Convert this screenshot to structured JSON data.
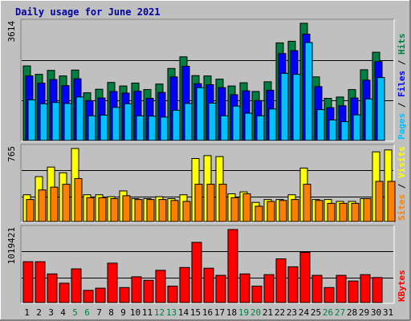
{
  "title": "Daily usage for June 2021",
  "colors": {
    "background": "#c0c0c0",
    "plot_background": "#c0c0c0",
    "title": "#0000a0",
    "hits": "#008040",
    "files": "#0000ff",
    "pages": "#00c0ff",
    "visits": "#ffff00",
    "sites": "#ff8000",
    "kbytes": "#ff0000",
    "weekend": "#008040",
    "weekday": "#000000"
  },
  "chart_data": [
    {
      "type": "bar",
      "name": "pages-files-hits",
      "right_label": [
        {
          "text": "Pages",
          "color": "#00c0ff"
        },
        {
          "text": " / ",
          "color": "#000000"
        },
        {
          "text": "Files",
          "color": "#0000ff"
        },
        {
          "text": " / ",
          "color": "#000000"
        },
        {
          "text": "Hits",
          "color": "#008040"
        }
      ],
      "ymax_label": "3614",
      "ylim": [
        0,
        3614
      ],
      "categories": [
        "1",
        "2",
        "3",
        "4",
        "5",
        "6",
        "7",
        "8",
        "9",
        "10",
        "11",
        "12",
        "13",
        "14",
        "15",
        "16",
        "17",
        "18",
        "19",
        "20",
        "21",
        "22",
        "23",
        "24",
        "25",
        "26",
        "27",
        "28",
        "29",
        "30",
        "31"
      ],
      "series": [
        {
          "name": "Hits",
          "values": [
            2300,
            2040,
            2160,
            1990,
            2170,
            1470,
            1580,
            1790,
            1680,
            1770,
            1570,
            1740,
            2220,
            2580,
            2000,
            1990,
            1890,
            1680,
            1780,
            1510,
            1810,
            3010,
            3060,
            3614,
            1960,
            1300,
            1340,
            1570,
            2180,
            2720,
            0
          ]
        },
        {
          "name": "Files",
          "values": [
            1990,
            1770,
            1880,
            1690,
            1900,
            1230,
            1310,
            1510,
            1460,
            1520,
            1300,
            1480,
            1960,
            2290,
            1750,
            1720,
            1630,
            1410,
            1530,
            1230,
            1550,
            2680,
            2770,
            3280,
            1660,
            1010,
            1070,
            1310,
            1860,
            2430,
            0
          ]
        },
        {
          "name": "Pages",
          "values": [
            1250,
            1130,
            1170,
            1140,
            1340,
            760,
            780,
            1020,
            1130,
            760,
            750,
            720,
            930,
            1140,
            1630,
            1150,
            760,
            1060,
            840,
            760,
            970,
            2070,
            2040,
            3020,
            950,
            630,
            580,
            790,
            1280,
            1940,
            0
          ]
        }
      ]
    },
    {
      "type": "bar",
      "name": "sites-visits",
      "right_label": [
        {
          "text": "Sites",
          "color": "#ff8000"
        },
        {
          "text": " / ",
          "color": "#000000"
        },
        {
          "text": "Visits",
          "color": "#ffff00"
        }
      ],
      "ymax_label": "765",
      "ylim": [
        0,
        765
      ],
      "categories": [
        "1",
        "2",
        "3",
        "4",
        "5",
        "6",
        "7",
        "8",
        "9",
        "10",
        "11",
        "12",
        "13",
        "14",
        "15",
        "16",
        "17",
        "18",
        "19",
        "20",
        "21",
        "22",
        "23",
        "24",
        "25",
        "26",
        "27",
        "28",
        "29",
        "30",
        "31"
      ],
      "series": [
        {
          "name": "Visits",
          "values": [
            280,
            470,
            570,
            510,
            765,
            280,
            280,
            260,
            320,
            240,
            240,
            260,
            240,
            280,
            660,
            690,
            680,
            290,
            310,
            200,
            230,
            230,
            280,
            560,
            230,
            230,
            210,
            210,
            240,
            730,
            750
          ]
        },
        {
          "name": "Sites",
          "values": [
            230,
            330,
            360,
            390,
            450,
            250,
            250,
            240,
            270,
            230,
            230,
            230,
            220,
            210,
            390,
            390,
            390,
            250,
            290,
            160,
            210,
            220,
            230,
            390,
            220,
            190,
            190,
            190,
            240,
            420,
            420
          ]
        }
      ]
    },
    {
      "type": "bar",
      "name": "kbytes",
      "right_label": [
        {
          "text": "KBytes",
          "color": "#ff0000"
        }
      ],
      "ymax_label": "1019421",
      "ylim": [
        0,
        1019421
      ],
      "categories": [
        "1",
        "2",
        "3",
        "4",
        "5",
        "6",
        "7",
        "8",
        "9",
        "10",
        "11",
        "12",
        "13",
        "14",
        "15",
        "16",
        "17",
        "18",
        "19",
        "20",
        "21",
        "22",
        "23",
        "24",
        "25",
        "26",
        "27",
        "28",
        "29",
        "30",
        "31"
      ],
      "series": [
        {
          "name": "KBytes",
          "values": [
            570000,
            570000,
            400000,
            270000,
            470000,
            170000,
            200000,
            550000,
            210000,
            360000,
            310000,
            450000,
            230000,
            490000,
            840000,
            480000,
            380000,
            1019421,
            400000,
            230000,
            390000,
            610000,
            500000,
            700000,
            380000,
            210000,
            380000,
            300000,
            390000,
            350000,
            0
          ]
        }
      ]
    }
  ],
  "x_ticks": [
    {
      "label": "1",
      "weekend": false
    },
    {
      "label": "2",
      "weekend": false
    },
    {
      "label": "3",
      "weekend": false
    },
    {
      "label": "4",
      "weekend": false
    },
    {
      "label": "5",
      "weekend": true
    },
    {
      "label": "6",
      "weekend": true
    },
    {
      "label": "7",
      "weekend": false
    },
    {
      "label": "8",
      "weekend": false
    },
    {
      "label": "9",
      "weekend": false
    },
    {
      "label": "10",
      "weekend": false
    },
    {
      "label": "11",
      "weekend": false
    },
    {
      "label": "12",
      "weekend": true
    },
    {
      "label": "13",
      "weekend": true
    },
    {
      "label": "14",
      "weekend": false
    },
    {
      "label": "15",
      "weekend": false
    },
    {
      "label": "16",
      "weekend": false
    },
    {
      "label": "17",
      "weekend": false
    },
    {
      "label": "18",
      "weekend": false
    },
    {
      "label": "19",
      "weekend": true
    },
    {
      "label": "20",
      "weekend": true
    },
    {
      "label": "21",
      "weekend": false
    },
    {
      "label": "22",
      "weekend": false
    },
    {
      "label": "23",
      "weekend": false
    },
    {
      "label": "24",
      "weekend": false
    },
    {
      "label": "25",
      "weekend": false
    },
    {
      "label": "26",
      "weekend": true
    },
    {
      "label": "27",
      "weekend": true
    },
    {
      "label": "28",
      "weekend": false
    },
    {
      "label": "29",
      "weekend": false
    },
    {
      "label": "30",
      "weekend": false
    },
    {
      "label": "31",
      "weekend": false
    }
  ]
}
